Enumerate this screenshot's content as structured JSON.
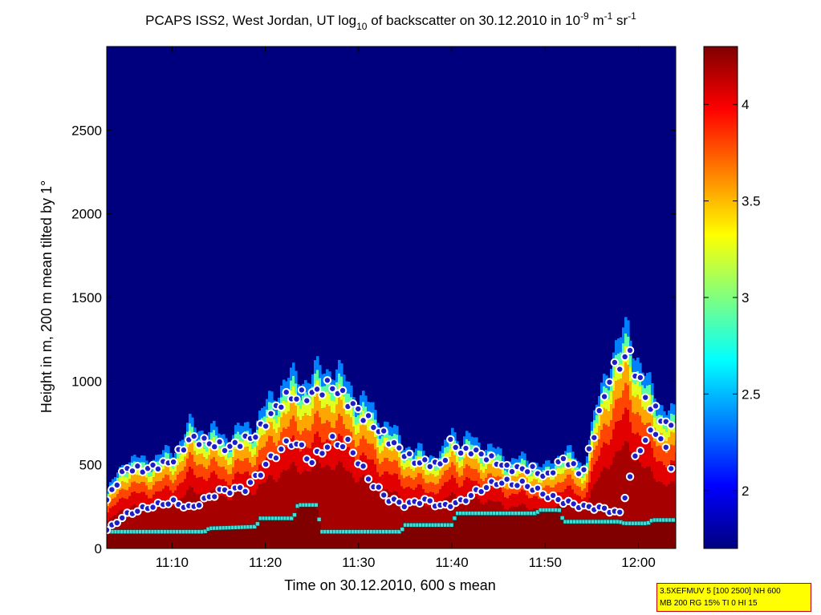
{
  "chart_data": {
    "type": "heatmap",
    "title": {
      "prefix": "PCAPS ISS2, West Jordan, UT log",
      "log_base_subscript": "10",
      "middle": " of backscatter on 30.12.2010 in 10",
      "exp1": "-9",
      "unit1": " m",
      "exp2": "-1",
      "unit2": " sr",
      "exp3": "-1"
    },
    "xlabel": "Time on 30.12.2010, 600 s mean",
    "ylabel": "Height in m, 200 m mean tilted by 1°",
    "x_time_range": [
      "11:03",
      "12:04"
    ],
    "x_ticks": [
      "11:10",
      "11:20",
      "11:30",
      "11:40",
      "11:50",
      "12:00"
    ],
    "ylim": [
      0,
      3000
    ],
    "y_ticks": [
      0,
      500,
      1000,
      1500,
      2000,
      2500
    ],
    "colorbar": {
      "range": [
        1.7,
        4.3
      ],
      "ticks": [
        2,
        2.5,
        3,
        3.5,
        4
      ],
      "colormap": "jet"
    },
    "upper_layer_height_m": {
      "minutes": [
        0,
        2,
        4,
        7,
        9,
        13,
        16,
        19,
        22,
        24,
        27,
        31,
        33,
        36,
        37,
        38,
        39,
        41,
        43,
        46,
        47,
        49,
        51,
        54,
        56,
        58,
        61
      ],
      "values": [
        290,
        480,
        470,
        520,
        660,
        600,
        680,
        900,
        920,
        980,
        820,
        610,
        520,
        500,
        650,
        570,
        590,
        540,
        480,
        470,
        420,
        540,
        440,
        1040,
        1170,
        870,
        690
      ]
    },
    "lower_layer_height_m": {
      "minutes": [
        0,
        2,
        4,
        7,
        9,
        12,
        15,
        18,
        20,
        22,
        24,
        26,
        28,
        30,
        32,
        34,
        36,
        38,
        40,
        42,
        45,
        47,
        49,
        51,
        53,
        55,
        57,
        59,
        61
      ],
      "values": [
        110,
        200,
        240,
        280,
        240,
        340,
        360,
        560,
        650,
        520,
        640,
        620,
        420,
        300,
        260,
        290,
        250,
        280,
        350,
        400,
        380,
        320,
        280,
        250,
        240,
        210,
        600,
        720,
        420
      ]
    },
    "mixing_layer_height_m": {
      "minutes": [
        0,
        10.5,
        11,
        16,
        16.5,
        20,
        20.5,
        22.5,
        23,
        31.5,
        32,
        37,
        37.5,
        46,
        46.5,
        48.5,
        49,
        55,
        55.5,
        58,
        58.5,
        61
      ],
      "values": [
        100,
        100,
        120,
        130,
        180,
        180,
        260,
        260,
        100,
        100,
        140,
        140,
        210,
        210,
        230,
        230,
        160,
        160,
        150,
        150,
        170,
        170
      ]
    },
    "colors": {
      "upper_marker_fill": "#1e1ec8",
      "lower_marker_fill": "#1e1ec8",
      "marker_edge": "#ffffff",
      "mixing_marker": "#40e0d8",
      "background_low": "#00007f"
    }
  },
  "annotation": {
    "line1": "3.5XEFMUV 5 [100 2500] NH 600",
    "line2": "MB 200 RG 15% TI 0 HI 15"
  }
}
